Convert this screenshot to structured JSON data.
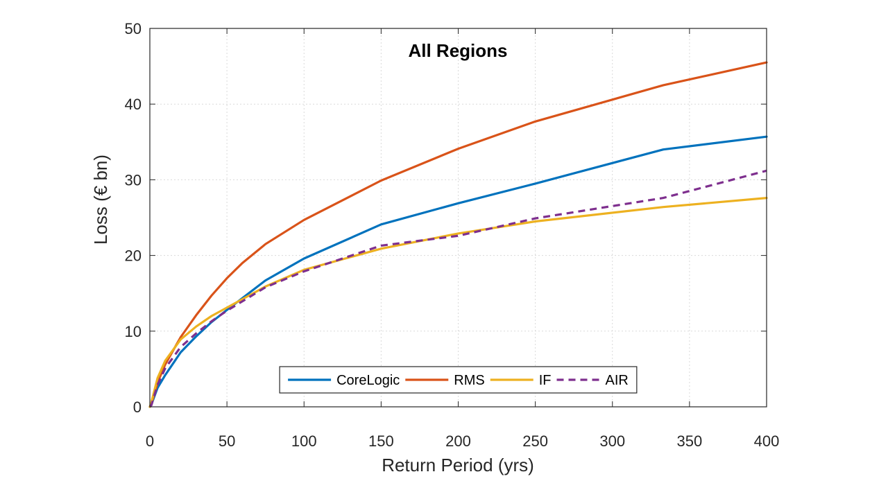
{
  "chart_data": {
    "type": "line",
    "title": "All Regions",
    "xlabel": "Return Period (yrs)",
    "ylabel": "Loss (€ bn)",
    "xlim": [
      0,
      400
    ],
    "ylim": [
      0,
      50
    ],
    "xticks": [
      0,
      50,
      100,
      150,
      200,
      250,
      300,
      350,
      400
    ],
    "yticks": [
      0,
      10,
      20,
      30,
      40,
      50
    ],
    "grid": true,
    "legend_position": "bottom-center",
    "series": [
      {
        "name": "CoreLogic",
        "color": "#0072BD",
        "dash": "solid",
        "points": [
          [
            1,
            0.3
          ],
          [
            5,
            2.5
          ],
          [
            10,
            4.2
          ],
          [
            20,
            7.2
          ],
          [
            30,
            9.3
          ],
          [
            40,
            11.2
          ],
          [
            50,
            12.8
          ],
          [
            75,
            16.7
          ],
          [
            100,
            19.6
          ],
          [
            150,
            24.1
          ],
          [
            200,
            26.9
          ],
          [
            250,
            29.5
          ],
          [
            333,
            34.0
          ],
          [
            400,
            35.7
          ]
        ]
      },
      {
        "name": "RMS",
        "color": "#D95319",
        "dash": "solid",
        "points": [
          [
            1,
            0.4
          ],
          [
            5,
            3.2
          ],
          [
            10,
            5.6
          ],
          [
            20,
            9.2
          ],
          [
            30,
            12.1
          ],
          [
            40,
            14.7
          ],
          [
            50,
            17.0
          ],
          [
            60,
            19.0
          ],
          [
            75,
            21.5
          ],
          [
            100,
            24.7
          ],
          [
            150,
            29.9
          ],
          [
            200,
            34.1
          ],
          [
            250,
            37.7
          ],
          [
            333,
            42.5
          ],
          [
            400,
            45.5
          ]
        ]
      },
      {
        "name": "IF",
        "color": "#EDB120",
        "dash": "solid",
        "points": [
          [
            1,
            0.6
          ],
          [
            5,
            3.8
          ],
          [
            10,
            6.1
          ],
          [
            20,
            8.9
          ],
          [
            30,
            10.6
          ],
          [
            40,
            12.0
          ],
          [
            50,
            13.1
          ],
          [
            75,
            15.9
          ],
          [
            100,
            18.1
          ],
          [
            150,
            20.9
          ],
          [
            200,
            22.9
          ],
          [
            250,
            24.5
          ],
          [
            333,
            26.4
          ],
          [
            400,
            27.6
          ]
        ]
      },
      {
        "name": "AIR",
        "color": "#7E2F8E",
        "dash": "dashed",
        "points": [
          [
            1,
            0.2
          ],
          [
            5,
            2.9
          ],
          [
            10,
            5.1
          ],
          [
            20,
            7.9
          ],
          [
            30,
            9.7
          ],
          [
            40,
            11.3
          ],
          [
            50,
            12.7
          ],
          [
            75,
            15.8
          ],
          [
            100,
            17.9
          ],
          [
            150,
            21.3
          ],
          [
            200,
            22.6
          ],
          [
            250,
            24.9
          ],
          [
            333,
            27.6
          ],
          [
            400,
            31.2
          ]
        ]
      }
    ]
  }
}
